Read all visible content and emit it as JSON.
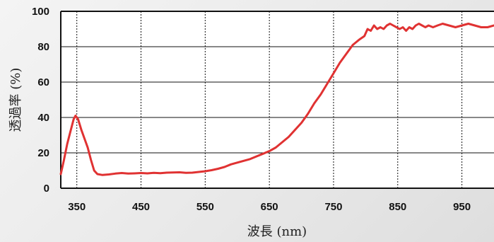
{
  "chart_data": {
    "type": "line",
    "title": "",
    "xlabel": "波長 (nm)",
    "ylabel": "透過率 (%)",
    "xlim": [
      325,
      1000
    ],
    "ylim": [
      0,
      100
    ],
    "x_ticks": [
      350,
      450,
      550,
      650,
      750,
      850,
      950
    ],
    "y_ticks": [
      0,
      20,
      40,
      60,
      80,
      100
    ],
    "grid": true,
    "series": [
      {
        "color": "#e03232",
        "points": [
          [
            325,
            8
          ],
          [
            330,
            16
          ],
          [
            335,
            25
          ],
          [
            340,
            32
          ],
          [
            345,
            39
          ],
          [
            348,
            41
          ],
          [
            352,
            39
          ],
          [
            357,
            33
          ],
          [
            362,
            28
          ],
          [
            367,
            23
          ],
          [
            372,
            16
          ],
          [
            377,
            10
          ],
          [
            382,
            8
          ],
          [
            390,
            7.5
          ],
          [
            400,
            7.8
          ],
          [
            410,
            8.3
          ],
          [
            420,
            8.6
          ],
          [
            430,
            8.3
          ],
          [
            440,
            8.4
          ],
          [
            450,
            8.6
          ],
          [
            460,
            8.4
          ],
          [
            470,
            8.7
          ],
          [
            480,
            8.5
          ],
          [
            490,
            8.8
          ],
          [
            500,
            8.9
          ],
          [
            510,
            9
          ],
          [
            520,
            8.7
          ],
          [
            530,
            8.8
          ],
          [
            540,
            9.2
          ],
          [
            550,
            9.6
          ],
          [
            560,
            10.2
          ],
          [
            570,
            11
          ],
          [
            580,
            12
          ],
          [
            590,
            13.5
          ],
          [
            600,
            14.5
          ],
          [
            610,
            15.5
          ],
          [
            620,
            16.5
          ],
          [
            630,
            18
          ],
          [
            640,
            19.5
          ],
          [
            650,
            21
          ],
          [
            660,
            23
          ],
          [
            670,
            26
          ],
          [
            680,
            29
          ],
          [
            690,
            33
          ],
          [
            700,
            37
          ],
          [
            710,
            42
          ],
          [
            720,
            48
          ],
          [
            730,
            53
          ],
          [
            740,
            59
          ],
          [
            750,
            65
          ],
          [
            760,
            71
          ],
          [
            770,
            76
          ],
          [
            780,
            81
          ],
          [
            790,
            84
          ],
          [
            798,
            86
          ],
          [
            803,
            90
          ],
          [
            808,
            89
          ],
          [
            813,
            92
          ],
          [
            818,
            90
          ],
          [
            823,
            91
          ],
          [
            828,
            90
          ],
          [
            833,
            92
          ],
          [
            838,
            93
          ],
          [
            843,
            92
          ],
          [
            848,
            91
          ],
          [
            853,
            90
          ],
          [
            858,
            91
          ],
          [
            863,
            89
          ],
          [
            868,
            91
          ],
          [
            873,
            90
          ],
          [
            878,
            92
          ],
          [
            883,
            93
          ],
          [
            888,
            92
          ],
          [
            893,
            91
          ],
          [
            898,
            92
          ],
          [
            905,
            91
          ],
          [
            912,
            92
          ],
          [
            920,
            93
          ],
          [
            930,
            92
          ],
          [
            940,
            91
          ],
          [
            950,
            92
          ],
          [
            960,
            93
          ],
          [
            970,
            92
          ],
          [
            980,
            91
          ],
          [
            990,
            91
          ],
          [
            1000,
            92
          ]
        ]
      }
    ]
  }
}
